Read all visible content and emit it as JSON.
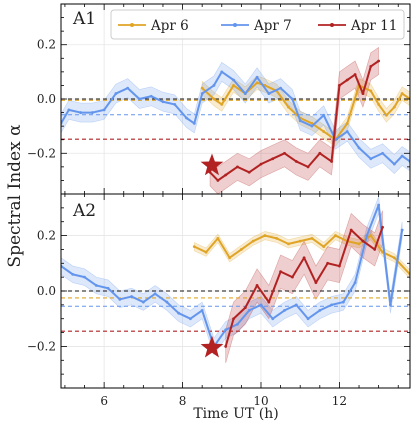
{
  "chart_data": {
    "type": "line",
    "xlabel": "Time UT (h)",
    "ylabel": "Spectral Index α",
    "xlim": [
      4.9,
      13.8
    ],
    "ylim": [
      -0.35,
      0.35
    ],
    "x_ticks": [
      6,
      8,
      10,
      12
    ],
    "y_ticks": [
      -0.2,
      0.0,
      0.2
    ],
    "grid": true,
    "legend": {
      "placement": "top",
      "entries": [
        "Apr 6",
        "Apr 7",
        "Apr 11"
      ]
    },
    "colors": {
      "Apr 6": "#e0a526",
      "Apr 7": "#6495ed",
      "Apr 11": "#b22222",
      "zero_line": "#111111"
    },
    "panels": [
      {
        "label": "A1",
        "mean_lines": {
          "Apr 6": -0.005,
          "Apr 7": -0.058,
          "Apr 11": -0.148
        },
        "star": {
          "x": 8.75,
          "y": -0.245
        },
        "series": [
          {
            "name": "Apr 6",
            "x": [
              8.5,
              8.8,
              9.0,
              9.3,
              9.6,
              9.9,
              10.1,
              10.4,
              10.7,
              11.0,
              11.3,
              11.6,
              11.9,
              12.2,
              12.5,
              12.8,
              13.0,
              13.2,
              13.4,
              13.6,
              13.8
            ],
            "y": [
              0.04,
              0.0,
              -0.02,
              0.05,
              0.02,
              0.06,
              0.05,
              0.03,
              -0.03,
              -0.07,
              -0.09,
              -0.12,
              -0.15,
              -0.09,
              0.05,
              0.03,
              -0.02,
              -0.06,
              -0.03,
              0.02,
              0.0
            ],
            "err": 0.025
          },
          {
            "name": "Apr 7",
            "x": [
              4.9,
              5.1,
              5.4,
              5.7,
              6.0,
              6.3,
              6.6,
              6.9,
              7.2,
              7.5,
              7.8,
              8.1,
              8.3,
              8.5,
              8.8,
              9.0,
              9.3,
              9.6,
              9.9,
              10.2,
              10.5,
              10.8,
              11.0,
              11.3,
              11.6,
              11.9,
              12.2,
              12.5,
              12.8,
              13.1,
              13.4,
              13.6,
              13.8
            ],
            "y": [
              -0.09,
              -0.04,
              -0.05,
              -0.05,
              -0.04,
              0.02,
              0.04,
              0.0,
              0.01,
              -0.01,
              -0.02,
              -0.07,
              -0.09,
              0.02,
              0.05,
              0.1,
              0.07,
              0.02,
              0.08,
              0.02,
              0.04,
              0.0,
              -0.08,
              -0.1,
              -0.06,
              -0.15,
              -0.12,
              -0.18,
              -0.22,
              -0.2,
              -0.24,
              -0.21,
              -0.23
            ],
            "err": 0.035
          },
          {
            "name": "Apr 11",
            "x": [
              8.7,
              8.9,
              9.1,
              9.4,
              9.7,
              10.0,
              10.3,
              10.6,
              10.9,
              11.2,
              11.5,
              11.8,
              12.0,
              12.2,
              12.4,
              12.6,
              12.8,
              13.0
            ],
            "y": [
              -0.27,
              -0.3,
              -0.28,
              -0.25,
              -0.27,
              -0.24,
              -0.22,
              -0.2,
              -0.23,
              -0.25,
              -0.2,
              -0.23,
              0.05,
              0.07,
              0.09,
              0.02,
              0.12,
              0.14
            ],
            "err": 0.05
          }
        ]
      },
      {
        "label": "A2",
        "mean_lines": {
          "Apr 6": -0.025,
          "Apr 7": -0.055,
          "Apr 11": -0.145
        },
        "star": {
          "x": 8.75,
          "y": -0.205
        },
        "series": [
          {
            "name": "Apr 6",
            "x": [
              8.3,
              8.6,
              8.9,
              9.2,
              9.5,
              9.8,
              10.1,
              10.4,
              10.7,
              11.0,
              11.3,
              11.6,
              11.9,
              12.2,
              12.5,
              12.8,
              13.1,
              13.4,
              13.8
            ],
            "y": [
              0.16,
              0.14,
              0.19,
              0.12,
              0.15,
              0.18,
              0.2,
              0.19,
              0.17,
              0.18,
              0.19,
              0.16,
              0.2,
              0.18,
              0.17,
              0.2,
              0.14,
              0.12,
              0.06
            ],
            "err": 0.015
          },
          {
            "name": "Apr 7",
            "x": [
              4.9,
              5.2,
              5.5,
              5.8,
              6.1,
              6.4,
              6.7,
              7.0,
              7.3,
              7.6,
              7.9,
              8.2,
              8.5,
              8.8,
              9.1,
              9.4,
              9.7,
              10.0,
              10.3,
              10.6,
              10.9,
              11.2,
              11.5,
              11.8,
              12.1,
              12.4,
              12.7,
              13.0,
              13.3,
              13.6
            ],
            "y": [
              0.09,
              0.06,
              0.05,
              0.02,
              0.01,
              -0.03,
              -0.02,
              -0.04,
              -0.01,
              -0.04,
              -0.08,
              -0.1,
              -0.07,
              -0.2,
              -0.14,
              -0.12,
              -0.07,
              -0.05,
              -0.1,
              -0.07,
              -0.05,
              -0.1,
              -0.07,
              -0.05,
              -0.04,
              0.03,
              0.2,
              0.31,
              -0.05,
              0.22
            ],
            "err": 0.03
          },
          {
            "name": "Apr 11",
            "x": [
              9.1,
              9.3,
              9.6,
              9.9,
              10.2,
              10.5,
              10.8,
              11.1,
              11.4,
              11.7,
              12.0,
              12.3,
              12.6,
              12.9,
              13.1
            ],
            "y": [
              -0.2,
              -0.1,
              -0.06,
              0.02,
              -0.04,
              0.07,
              0.05,
              0.12,
              0.03,
              0.1,
              0.09,
              0.22,
              0.18,
              0.15,
              0.23
            ],
            "err": 0.06
          }
        ]
      }
    ]
  }
}
